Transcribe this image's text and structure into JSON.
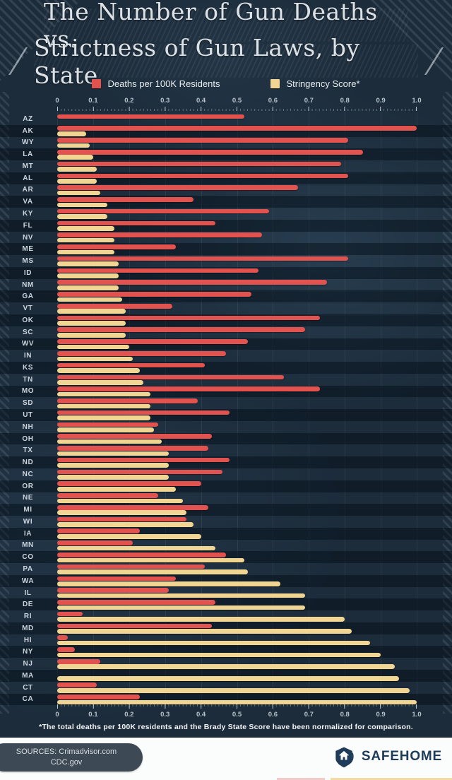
{
  "title": {
    "line1": "The Number of Gun Deaths vs.",
    "line2": "Strictness of Gun Laws, by State"
  },
  "legend": [
    {
      "label": "Deaths per 100K Residents",
      "color": "#e2524e"
    },
    {
      "label": "Stringency Score*",
      "color": "#f0d593"
    }
  ],
  "colors": {
    "deaths_bar": "#e2524e",
    "stringency_bar": "#f0d593",
    "background": "#1c2c3b",
    "row_band": "rgba(2,11,19,0.45)",
    "brand_navy": "#1e3c59"
  },
  "chart_data": {
    "type": "bar",
    "orientation": "horizontal",
    "title": "The Number of Gun Deaths vs. Strictness of Gun Laws, by State",
    "xlim": [
      0,
      1.0
    ],
    "x_ticks": [
      "0",
      "0.1",
      "0.2",
      "0.3",
      "0.4",
      "0.5",
      "0.6",
      "0.7",
      "0.8",
      "0.9",
      "1.0"
    ],
    "grid": true,
    "legend_position": "top",
    "categories": [
      "AZ",
      "AK",
      "WY",
      "LA",
      "MT",
      "AL",
      "AR",
      "VA",
      "KY",
      "FL",
      "NV",
      "ME",
      "MS",
      "ID",
      "NM",
      "GA",
      "VT",
      "OK",
      "SC",
      "WV",
      "IN",
      "KS",
      "TN",
      "MO",
      "SD",
      "UT",
      "NH",
      "OH",
      "TX",
      "ND",
      "NC",
      "OR",
      "NE",
      "MI",
      "WI",
      "IA",
      "MN",
      "CO",
      "PA",
      "WA",
      "IL",
      "DE",
      "RI",
      "MD",
      "HI",
      "NY",
      "NJ",
      "MA",
      "CT",
      "CA"
    ],
    "series": [
      {
        "name": "Deaths per 100K Residents",
        "color": "#e2524e",
        "values": [
          0.52,
          1.0,
          0.81,
          0.85,
          0.79,
          0.81,
          0.67,
          0.38,
          0.59,
          0.44,
          0.57,
          0.33,
          0.81,
          0.56,
          0.75,
          0.54,
          0.32,
          0.73,
          0.69,
          0.53,
          0.47,
          0.41,
          0.63,
          0.73,
          0.39,
          0.48,
          0.28,
          0.43,
          0.42,
          0.48,
          0.46,
          0.4,
          0.28,
          0.42,
          0.36,
          0.23,
          0.21,
          0.47,
          0.41,
          0.33,
          0.31,
          0.44,
          0.07,
          0.43,
          0.03,
          0.05,
          0.12,
          0.0,
          0.11,
          0.23
        ]
      },
      {
        "name": "Stringency Score*",
        "color": "#f0d593",
        "values": [
          0.0,
          0.08,
          0.09,
          0.1,
          0.11,
          0.11,
          0.12,
          0.14,
          0.14,
          0.16,
          0.16,
          0.16,
          0.17,
          0.17,
          0.17,
          0.18,
          0.19,
          0.19,
          0.19,
          0.2,
          0.21,
          0.23,
          0.24,
          0.26,
          0.26,
          0.26,
          0.27,
          0.29,
          0.31,
          0.31,
          0.31,
          0.33,
          0.35,
          0.36,
          0.38,
          0.4,
          0.44,
          0.52,
          0.53,
          0.62,
          0.69,
          0.69,
          0.8,
          0.82,
          0.87,
          0.9,
          0.94,
          0.95,
          0.98,
          1.0
        ]
      }
    ]
  },
  "footnote": "*The total deaths per 100K residents and the Brady State Score have been normalized for comparison.",
  "footer": {
    "sources_line1": "SOURCES: Crimadvisor.com",
    "sources_line2": "CDC.gov",
    "brand": "SAFEHOME"
  }
}
